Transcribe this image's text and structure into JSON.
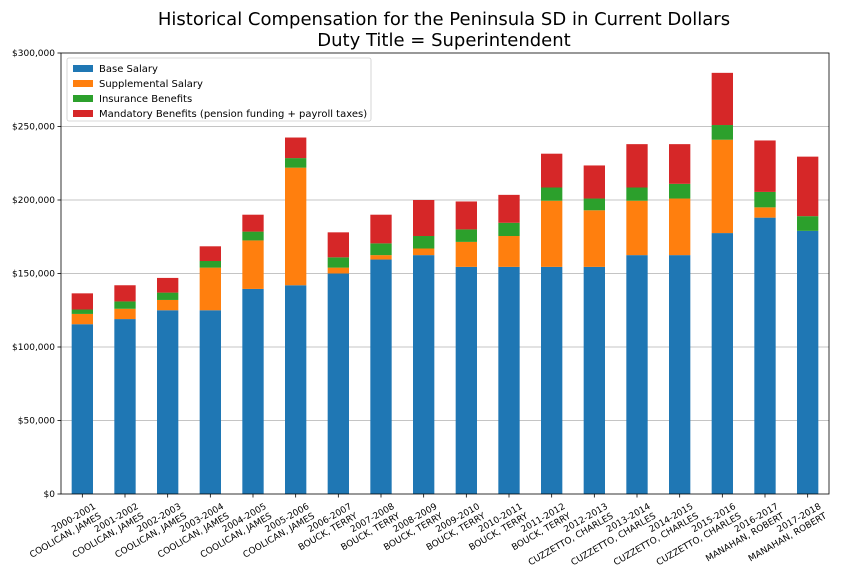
{
  "chart_data": {
    "type": "bar",
    "stacked": true,
    "title": "Historical Compensation for the Peninsula SD in Current Dollars",
    "subtitle": "Duty Title = Superintendent",
    "xlabel": "",
    "ylabel": "",
    "ylim": [
      0,
      300000
    ],
    "yticks": [
      0,
      50000,
      100000,
      150000,
      200000,
      250000,
      300000
    ],
    "ytick_labels": [
      "$0",
      "$50,000",
      "$100,000",
      "$150,000",
      "$200,000",
      "$250,000",
      "$300,000"
    ],
    "grid": "horizontal",
    "legend_position": "top-left",
    "categories": [
      [
        "2000-2001",
        "COOLICAN, JAMES"
      ],
      [
        "2001-2002",
        "COOLICAN, JAMES"
      ],
      [
        "2002-2003",
        "COOLICAN, JAMES"
      ],
      [
        "2003-2004",
        "COOLICAN, JAMES"
      ],
      [
        "2004-2005",
        "COOLICAN, JAMES"
      ],
      [
        "2005-2006",
        "COOLICAN, JAMES"
      ],
      [
        "2006-2007",
        "BOUCK, TERRY"
      ],
      [
        "2007-2008",
        "BOUCK, TERRY"
      ],
      [
        "2008-2009",
        "BOUCK, TERRY"
      ],
      [
        "2009-2010",
        "BOUCK, TERRY"
      ],
      [
        "2010-2011",
        "BOUCK, TERRY"
      ],
      [
        "2011-2012",
        "BOUCK, TERRY"
      ],
      [
        "2012-2013",
        "CUZZETTO, CHARLES"
      ],
      [
        "2013-2014",
        "CUZZETTO, CHARLES"
      ],
      [
        "2014-2015",
        "CUZZETTO, CHARLES"
      ],
      [
        "2015-2016",
        "CUZZETTO, CHARLES"
      ],
      [
        "2016-2017",
        "MANAHAN, ROBERT"
      ],
      [
        "2017-2018",
        "MANAHAN, ROBERT"
      ]
    ],
    "series": [
      {
        "name": "Base Salary",
        "color": "#1f77b4",
        "values": [
          115500,
          119000,
          125000,
          125000,
          139500,
          142000,
          150000,
          159500,
          162500,
          154500,
          154500,
          154500,
          154500,
          162500,
          162500,
          177500,
          188000,
          179000
        ]
      },
      {
        "name": "Supplemental Salary",
        "color": "#ff7f0e",
        "values": [
          7000,
          7000,
          7000,
          29000,
          33000,
          80000,
          4000,
          3000,
          4500,
          17000,
          21000,
          45000,
          38500,
          37000,
          38500,
          63500,
          7000,
          0
        ]
      },
      {
        "name": "Insurance Benefits",
        "color": "#2ca02c",
        "values": [
          3000,
          5000,
          5000,
          4500,
          6000,
          6500,
          7000,
          8000,
          8500,
          8500,
          9000,
          9000,
          8000,
          9000,
          10000,
          10000,
          10500,
          10000
        ]
      },
      {
        "name": "Mandatory Benefits (pension funding + payroll taxes)",
        "color": "#d62728",
        "values": [
          11000,
          11000,
          10000,
          10000,
          11500,
          14000,
          17000,
          19500,
          24500,
          19000,
          19000,
          23000,
          22500,
          29500,
          27000,
          35500,
          35000,
          40500
        ]
      }
    ]
  }
}
